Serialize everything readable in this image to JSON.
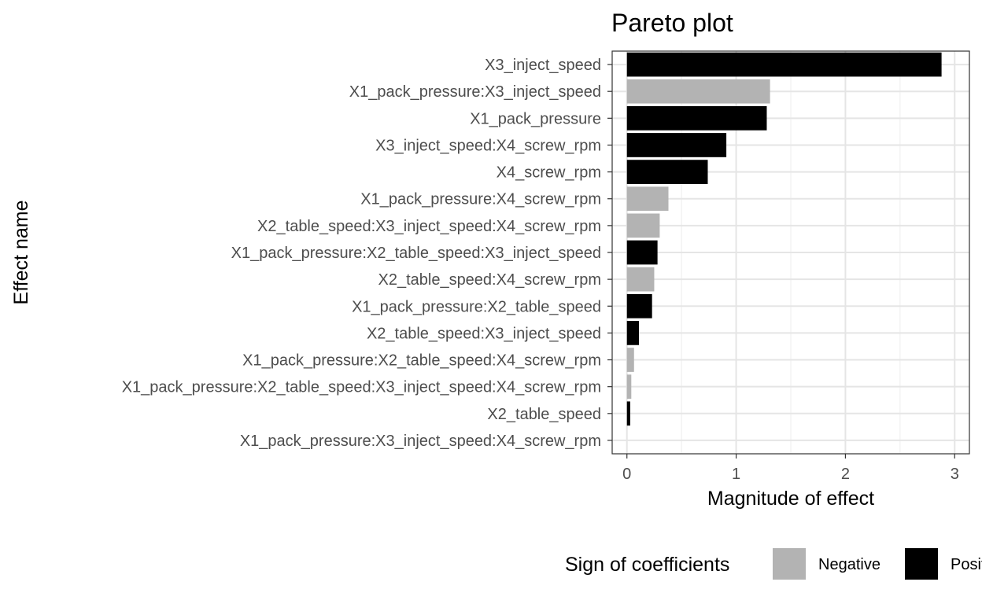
{
  "chart_data": {
    "type": "bar",
    "orientation": "horizontal",
    "title": "Pareto plot",
    "xlabel": "Magnitude of effect",
    "ylabel": "Effect name",
    "xlim": [
      0,
      3
    ],
    "x_ticks": [
      0,
      1,
      2,
      3
    ],
    "grid": true,
    "legend": {
      "title": "Sign of coefficients",
      "placement": "bottom",
      "entries": [
        {
          "label": "Negative",
          "color": "#b3b3b3"
        },
        {
          "label": "Positive",
          "color": "#000000"
        }
      ]
    },
    "categories": [
      "X3_inject_speed",
      "X1_pack_pressure:X3_inject_speed",
      "X1_pack_pressure",
      "X3_inject_speed:X4_screw_rpm",
      "X4_screw_rpm",
      "X1_pack_pressure:X4_screw_rpm",
      "X2_table_speed:X3_inject_speed:X4_screw_rpm",
      "X1_pack_pressure:X2_table_speed:X3_inject_speed",
      "X2_table_speed:X4_screw_rpm",
      "X1_pack_pressure:X2_table_speed",
      "X2_table_speed:X3_inject_speed",
      "X1_pack_pressure:X2_table_speed:X4_screw_rpm",
      "X1_pack_pressure:X2_table_speed:X3_inject_speed:X4_screw_rpm",
      "X2_table_speed",
      "X1_pack_pressure:X3_inject_speed:X4_screw_rpm"
    ],
    "values": [
      2.88,
      1.31,
      1.28,
      0.91,
      0.74,
      0.38,
      0.3,
      0.28,
      0.25,
      0.23,
      0.11,
      0.065,
      0.04,
      0.03,
      0.0
    ],
    "signs": [
      "Positive",
      "Negative",
      "Positive",
      "Positive",
      "Positive",
      "Negative",
      "Negative",
      "Positive",
      "Negative",
      "Positive",
      "Positive",
      "Negative",
      "Negative",
      "Positive",
      "Negative"
    ]
  }
}
